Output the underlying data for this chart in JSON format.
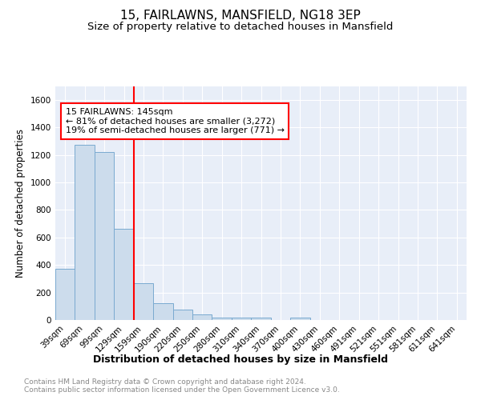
{
  "title": "15, FAIRLAWNS, MANSFIELD, NG18 3EP",
  "subtitle": "Size of property relative to detached houses in Mansfield",
  "xlabel": "Distribution of detached houses by size in Mansfield",
  "ylabel": "Number of detached properties",
  "footer": "Contains HM Land Registry data © Crown copyright and database right 2024.\nContains public sector information licensed under the Open Government Licence v3.0.",
  "categories": [
    "39sqm",
    "69sqm",
    "99sqm",
    "129sqm",
    "159sqm",
    "190sqm",
    "220sqm",
    "250sqm",
    "280sqm",
    "310sqm",
    "340sqm",
    "370sqm",
    "400sqm",
    "430sqm",
    "460sqm",
    "491sqm",
    "521sqm",
    "551sqm",
    "581sqm",
    "611sqm",
    "641sqm"
  ],
  "values": [
    370,
    1270,
    1220,
    660,
    270,
    120,
    75,
    40,
    20,
    15,
    15,
    0,
    15,
    0,
    0,
    0,
    0,
    0,
    0,
    0,
    0
  ],
  "bar_color": "#ccdcec",
  "bar_edge_color": "#7aaad0",
  "red_line_x": 3.5,
  "annotation_text": "15 FAIRLAWNS: 145sqm\n← 81% of detached houses are smaller (3,272)\n19% of semi-detached houses are larger (771) →",
  "ylim": [
    0,
    1700
  ],
  "yticks": [
    0,
    200,
    400,
    600,
    800,
    1000,
    1200,
    1400,
    1600
  ],
  "plot_bg_color": "#e8eef8",
  "grid_color": "#ffffff",
  "title_fontsize": 11,
  "subtitle_fontsize": 9.5,
  "ylabel_fontsize": 8.5,
  "xlabel_fontsize": 9,
  "tick_fontsize": 7.5,
  "ann_fontsize": 8,
  "footer_fontsize": 6.5,
  "footer_color": "#888888"
}
